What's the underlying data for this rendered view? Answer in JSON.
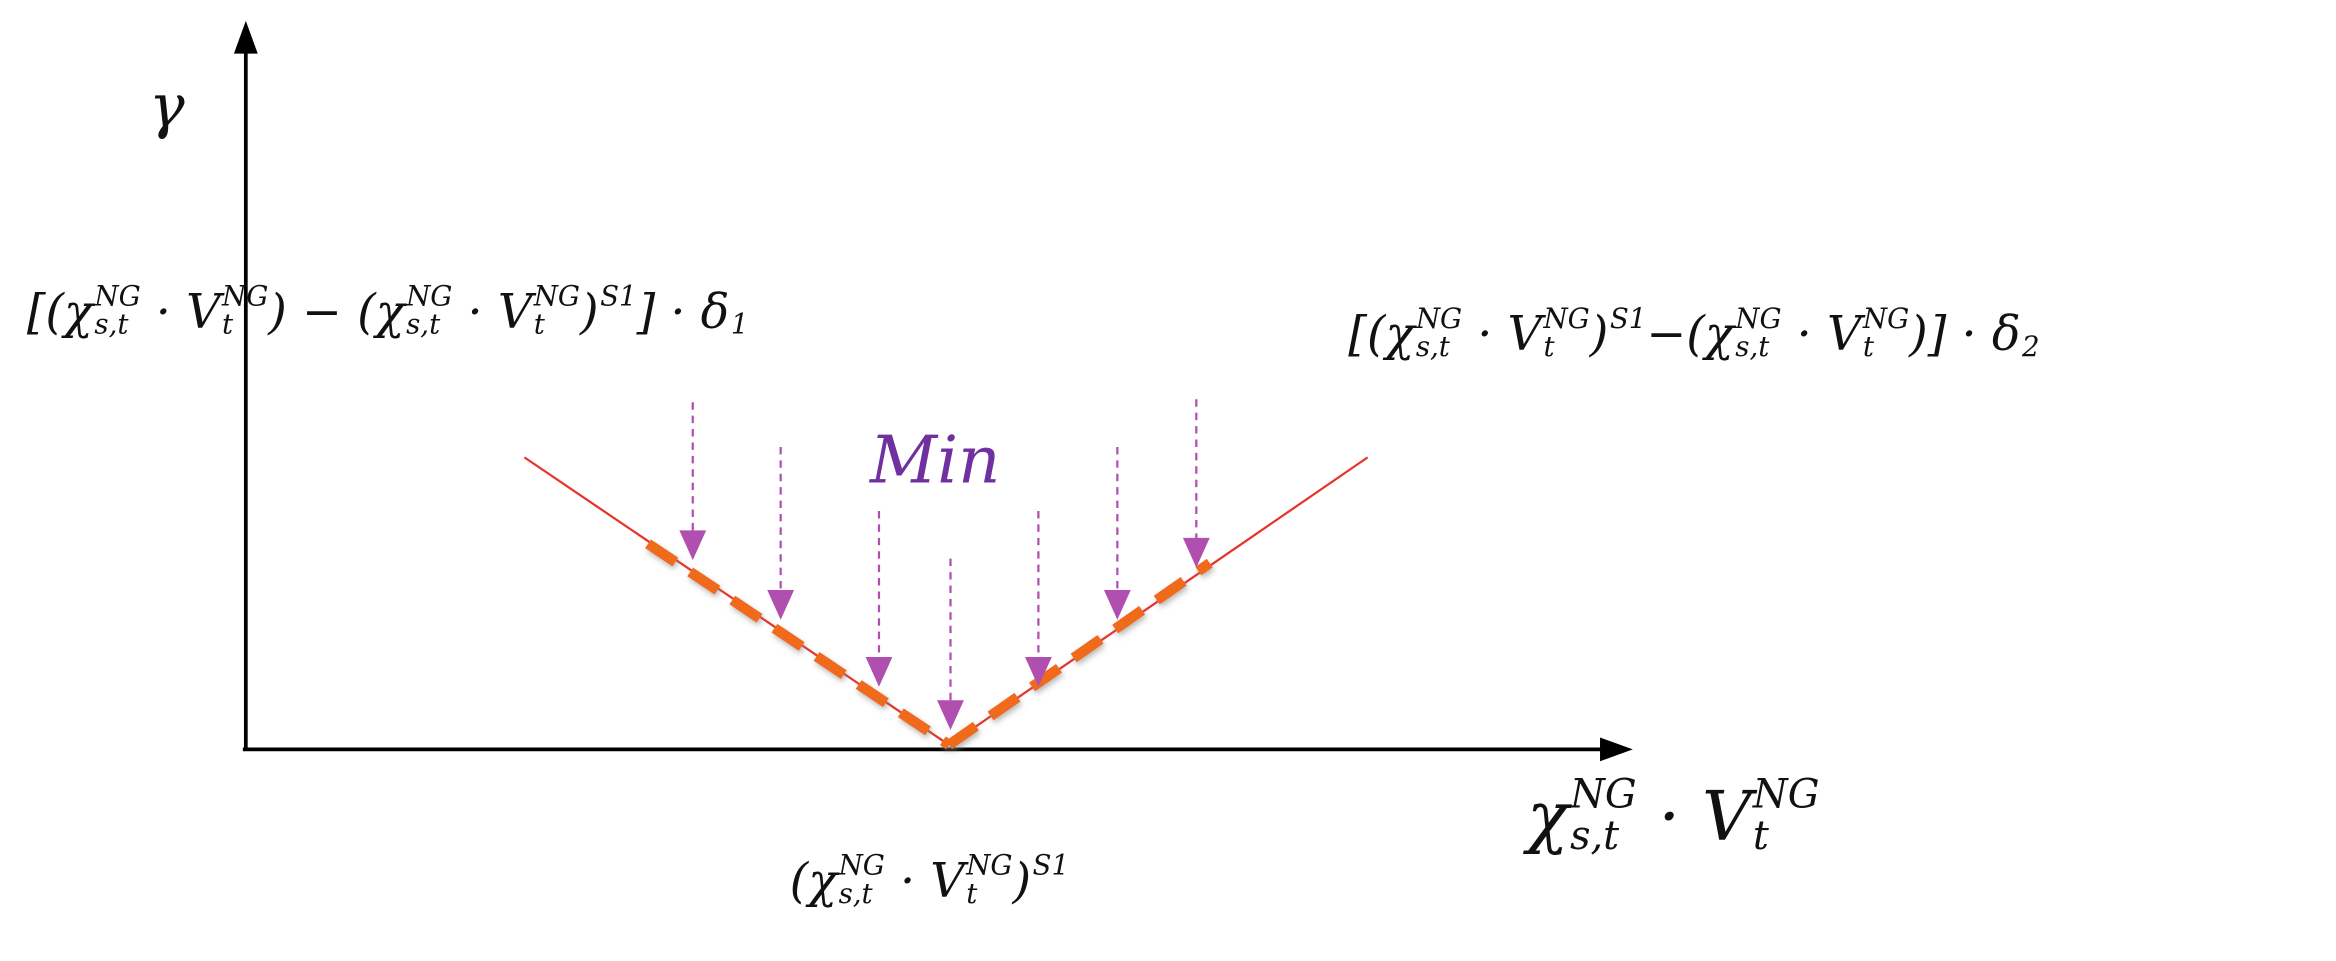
{
  "y_axis_label": "γ",
  "min_label": "Min",
  "left_formula": [
    {
      "base": "[(χ",
      "sup": "NG",
      "sub": "s,t"
    },
    {
      "base": " · V",
      "sup": "NG",
      "sub": "t"
    },
    {
      "base": ") − (χ",
      "sup": "NG",
      "sub": "s,t"
    },
    {
      "base": " · V",
      "sup": "NG",
      "sub": "t"
    },
    {
      "base": ")",
      "sup": "S1"
    },
    {
      "base": "] · δ",
      "sub": "1"
    }
  ],
  "right_formula": [
    {
      "base": "[(χ",
      "sup": "NG",
      "sub": "s,t"
    },
    {
      "base": " · V",
      "sup": "NG",
      "sub": "t"
    },
    {
      "base": ")",
      "sup": "S1"
    },
    {
      "base": "−(χ",
      "sup": "NG",
      "sub": "s,t"
    },
    {
      "base": " · V",
      "sup": "NG",
      "sub": "t"
    },
    {
      "base": ")] · δ",
      "sub": "2"
    }
  ],
  "x_axis_label": [
    {
      "base": "χ",
      "sup": "NG",
      "sub": "s,t"
    },
    {
      "base": " · V",
      "sup": "NG",
      "sub": "t"
    }
  ],
  "vertex_label": [
    {
      "base": "(χ",
      "sup": "NG",
      "sub": "s,t"
    },
    {
      "base": " · V",
      "sup": "NG",
      "sub": "t"
    },
    {
      "base": ")",
      "sup": "S1"
    }
  ]
}
